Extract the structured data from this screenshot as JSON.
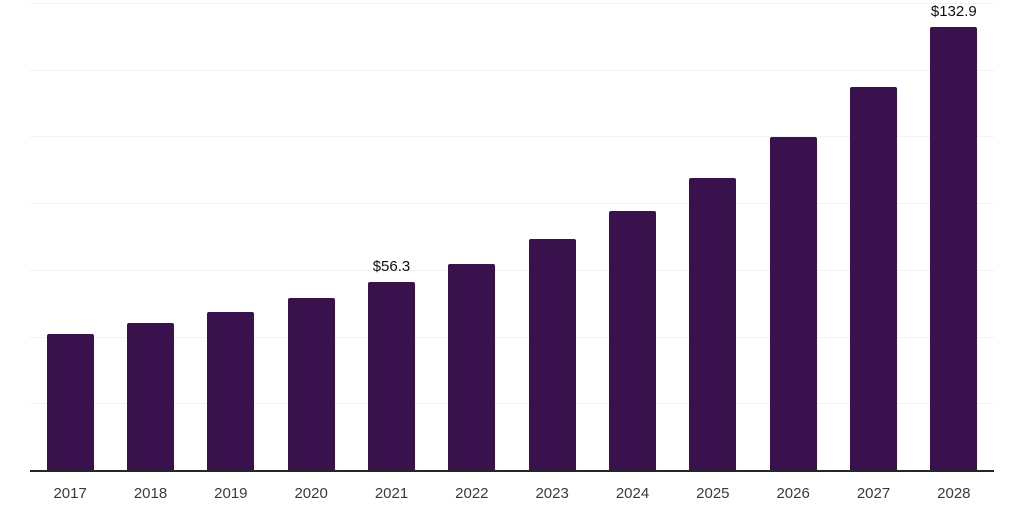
{
  "chart_data": {
    "type": "bar",
    "title": "",
    "xlabel": "",
    "ylabel": "",
    "categories": [
      "2017",
      "2018",
      "2019",
      "2020",
      "2021",
      "2022",
      "2023",
      "2024",
      "2025",
      "2026",
      "2027",
      "2028"
    ],
    "values": [
      40.8,
      44.0,
      47.5,
      51.5,
      56.3,
      61.8,
      69.2,
      77.5,
      87.5,
      99.9,
      114.9,
      132.9
    ],
    "point_labels": [
      "",
      "",
      "",
      "",
      "$56.3",
      "",
      "",
      "",
      "",
      "",
      "",
      "$132.9"
    ],
    "ylim": [
      0,
      140
    ],
    "grid_step": 20,
    "grid": true,
    "legend": "none",
    "colors": {
      "bar": "#38114d",
      "grid": "#f2f2f2",
      "axis": "#262626",
      "value_label": "#0f0f0f",
      "tick_label": "#3a3a3a",
      "background": "#ffffff"
    }
  }
}
